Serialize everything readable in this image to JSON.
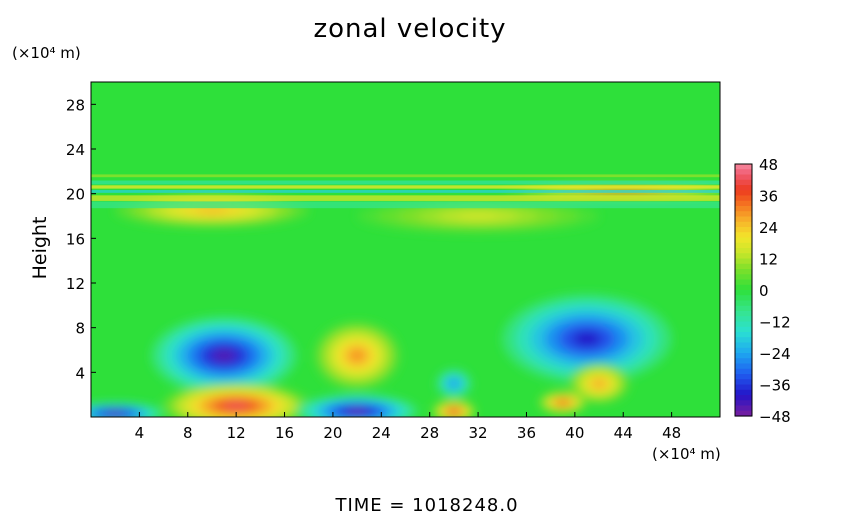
{
  "chart_data": {
    "type": "heatmap",
    "title": "zonal velocity",
    "ylabel": "Height",
    "y_unit": "(×10⁴ m)",
    "x_unit": "(×10⁴ m)",
    "xlabel": "",
    "xlim": [
      0,
      52
    ],
    "ylim": [
      0,
      30
    ],
    "xticks": [
      4,
      8,
      12,
      16,
      20,
      24,
      28,
      32,
      36,
      40,
      44,
      48
    ],
    "yticks": [
      4,
      8,
      12,
      16,
      20,
      24,
      28
    ],
    "colorbar": {
      "ticks": [
        48,
        36,
        24,
        12,
        0,
        -12,
        -24,
        -36,
        -48
      ],
      "range": [
        -48,
        48
      ]
    },
    "features": [
      {
        "x": 11,
        "y": 5.5,
        "value": -44
      },
      {
        "x": 41,
        "y": 7,
        "value": -40
      },
      {
        "x": 22,
        "y": 5.5,
        "value": 30
      },
      {
        "x": 12,
        "y": 1,
        "value": 42
      },
      {
        "x": 22,
        "y": 0.5,
        "value": -46
      },
      {
        "x": 2,
        "y": 0.3,
        "value": -46
      },
      {
        "x": 30,
        "y": 3,
        "value": -28
      },
      {
        "x": 30,
        "y": 0.5,
        "value": 40
      },
      {
        "x": 42,
        "y": 3,
        "value": 28
      },
      {
        "x": 39,
        "y": 1.3,
        "value": 36
      },
      {
        "x": 10,
        "y": 18.5,
        "value": 26
      },
      {
        "x": 44,
        "y": 20.2,
        "value": 36
      },
      {
        "x": 32,
        "y": 18,
        "value": 16
      }
    ],
    "footer": "TIME  =  1018248.0"
  }
}
